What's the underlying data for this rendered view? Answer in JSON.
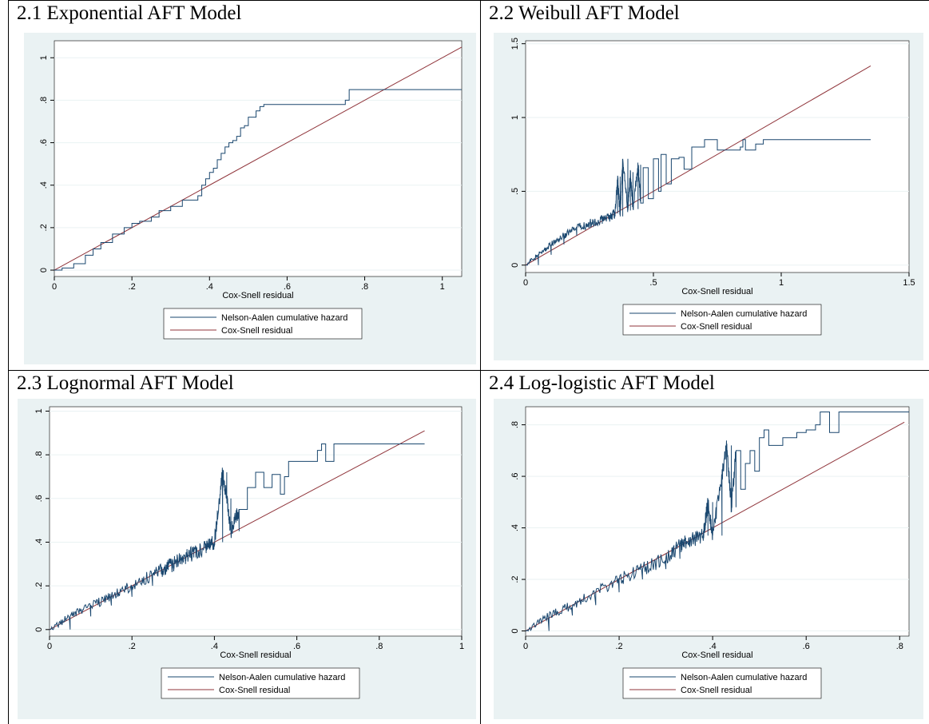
{
  "figure": {
    "background_color": "#eaf2f3",
    "plot_background": "#ffffff",
    "gridline_color": "#eaf2f3",
    "na_line_color": "#1a476f",
    "reference_line_color": "#90353b"
  },
  "panels": [
    {
      "title": "2.1 Exponential AFT Model"
    },
    {
      "title": "2.2 Weibull AFT Model"
    },
    {
      "title": "2.3 Lognormal AFT Model"
    },
    {
      "title": "2.4 Log-logistic AFT Model"
    }
  ],
  "chart_data": [
    {
      "type": "line",
      "title": "",
      "xlabel": "Cox-Snell residual",
      "ylabel": "",
      "xlim": [
        0,
        1.05
      ],
      "ylim": [
        -0.03,
        1.08
      ],
      "x_ticks": [
        0,
        0.2,
        0.4,
        0.6,
        0.8,
        1
      ],
      "x_tick_labels": [
        "0",
        ".2",
        ".4",
        ".6",
        ".8",
        "1"
      ],
      "y_ticks": [
        0,
        0.2,
        0.4,
        0.6,
        0.8,
        1
      ],
      "y_tick_labels": [
        "0",
        ".2",
        ".4",
        ".6",
        ".8",
        "1"
      ],
      "grid": true,
      "legend_position": "bottom",
      "noise": 0,
      "series": [
        {
          "name": "Nelson-Aalen cumulative hazard",
          "x": [
            0,
            0.02,
            0.05,
            0.08,
            0.1,
            0.12,
            0.15,
            0.18,
            0.2,
            0.22,
            0.25,
            0.27,
            0.3,
            0.33,
            0.35,
            0.37,
            0.38,
            0.39,
            0.4,
            0.41,
            0.42,
            0.43,
            0.44,
            0.45,
            0.46,
            0.47,
            0.48,
            0.49,
            0.5,
            0.51,
            0.52,
            0.53,
            0.54,
            0.6,
            0.7,
            0.75,
            0.76,
            0.85,
            1.05
          ],
          "y": [
            0,
            0.01,
            0.03,
            0.07,
            0.1,
            0.13,
            0.17,
            0.2,
            0.22,
            0.23,
            0.25,
            0.28,
            0.3,
            0.33,
            0.33,
            0.35,
            0.4,
            0.43,
            0.46,
            0.48,
            0.52,
            0.55,
            0.58,
            0.6,
            0.61,
            0.63,
            0.67,
            0.68,
            0.72,
            0.72,
            0.75,
            0.77,
            0.78,
            0.78,
            0.78,
            0.8,
            0.85,
            0.85,
            0.85
          ]
        },
        {
          "name": "Cox-Snell residual",
          "x": [
            0,
            1.05
          ],
          "y": [
            0,
            1.05
          ]
        }
      ]
    },
    {
      "type": "line",
      "title": "",
      "xlabel": "Cox-Snell residual",
      "ylabel": "",
      "xlim": [
        0,
        1.5
      ],
      "ylim": [
        -0.05,
        1.52
      ],
      "x_ticks": [
        0,
        0.5,
        1,
        1.5
      ],
      "x_tick_labels": [
        "0",
        ".5",
        "1",
        "1.5"
      ],
      "y_ticks": [
        0,
        0.5,
        1,
        1.5
      ],
      "y_tick_labels": [
        "0",
        ".5",
        "1",
        "1.5"
      ],
      "grid": true,
      "legend_position": "bottom",
      "noise": 0.035,
      "series": [
        {
          "name": "Nelson-Aalen cumulative hazard",
          "x": [
            0,
            0.05,
            0.1,
            0.15,
            0.2,
            0.25,
            0.3,
            0.33,
            0.35,
            0.36,
            0.37,
            0.38,
            0.4,
            0.41,
            0.42,
            0.44,
            0.45,
            0.46,
            0.48,
            0.5,
            0.52,
            0.53,
            0.55,
            0.57,
            0.6,
            0.62,
            0.65,
            0.7,
            0.75,
            0.8,
            0.84,
            0.85,
            0.86,
            0.9,
            0.93,
            1.0,
            1.35
          ],
          "y": [
            0,
            0.07,
            0.14,
            0.2,
            0.25,
            0.28,
            0.31,
            0.33,
            0.35,
            0.6,
            0.33,
            0.72,
            0.37,
            0.63,
            0.38,
            0.68,
            0.42,
            0.66,
            0.45,
            0.72,
            0.5,
            0.75,
            0.55,
            0.72,
            0.73,
            0.65,
            0.8,
            0.85,
            0.78,
            0.78,
            0.8,
            0.85,
            0.78,
            0.82,
            0.85,
            0.85,
            0.85
          ]
        },
        {
          "name": "Cox-Snell residual",
          "x": [
            0,
            1.35
          ],
          "y": [
            0,
            1.35
          ]
        }
      ]
    },
    {
      "type": "line",
      "title": "",
      "xlabel": "Cox-Snell residual",
      "ylabel": "",
      "xlim": [
        0,
        1
      ],
      "ylim": [
        -0.03,
        1.02
      ],
      "x_ticks": [
        0,
        0.2,
        0.4,
        0.6,
        0.8,
        1
      ],
      "x_tick_labels": [
        "0",
        ".2",
        ".4",
        ".6",
        ".8",
        "1"
      ],
      "y_ticks": [
        0,
        0.2,
        0.4,
        0.6,
        0.8,
        1
      ],
      "y_tick_labels": [
        "0",
        ".2",
        ".4",
        ".6",
        ".8",
        "1"
      ],
      "grid": true,
      "legend_position": "bottom",
      "noise": 0.035,
      "series": [
        {
          "name": "Nelson-Aalen cumulative hazard",
          "x": [
            0,
            0.05,
            0.1,
            0.15,
            0.2,
            0.25,
            0.28,
            0.3,
            0.33,
            0.35,
            0.38,
            0.4,
            0.42,
            0.43,
            0.44,
            0.46,
            0.48,
            0.5,
            0.52,
            0.54,
            0.56,
            0.57,
            0.58,
            0.6,
            0.65,
            0.66,
            0.67,
            0.68,
            0.69,
            0.72,
            0.8,
            0.91
          ],
          "y": [
            0,
            0.06,
            0.11,
            0.15,
            0.2,
            0.25,
            0.28,
            0.3,
            0.33,
            0.35,
            0.38,
            0.4,
            0.72,
            0.6,
            0.45,
            0.55,
            0.65,
            0.72,
            0.65,
            0.71,
            0.62,
            0.7,
            0.77,
            0.77,
            0.82,
            0.85,
            0.77,
            0.77,
            0.85,
            0.85,
            0.85,
            0.85
          ]
        },
        {
          "name": "Cox-Snell residual",
          "x": [
            0,
            0.91
          ],
          "y": [
            0,
            0.91
          ]
        }
      ]
    },
    {
      "type": "line",
      "title": "",
      "xlabel": "Cox-Snell residual",
      "ylabel": "",
      "xlim": [
        0,
        0.82
      ],
      "ylim": [
        -0.02,
        0.87
      ],
      "x_ticks": [
        0,
        0.2,
        0.4,
        0.6,
        0.8
      ],
      "x_tick_labels": [
        "0",
        ".2",
        ".4",
        ".6",
        ".8"
      ],
      "y_ticks": [
        0,
        0.2,
        0.4,
        0.6,
        0.8
      ],
      "y_tick_labels": [
        "0",
        ".2",
        ".4",
        ".6",
        ".8"
      ],
      "grid": true,
      "legend_position": "bottom",
      "noise": 0.03,
      "series": [
        {
          "name": "Nelson-Aalen cumulative hazard",
          "x": [
            0,
            0.05,
            0.1,
            0.15,
            0.2,
            0.25,
            0.3,
            0.33,
            0.35,
            0.38,
            0.39,
            0.4,
            0.42,
            0.43,
            0.44,
            0.45,
            0.46,
            0.47,
            0.48,
            0.49,
            0.5,
            0.51,
            0.52,
            0.55,
            0.58,
            0.6,
            0.62,
            0.63,
            0.65,
            0.66,
            0.67,
            0.7,
            0.82
          ],
          "y": [
            0,
            0.06,
            0.1,
            0.15,
            0.2,
            0.24,
            0.28,
            0.33,
            0.35,
            0.37,
            0.5,
            0.37,
            0.6,
            0.72,
            0.48,
            0.7,
            0.55,
            0.65,
            0.7,
            0.62,
            0.75,
            0.78,
            0.72,
            0.75,
            0.77,
            0.78,
            0.8,
            0.85,
            0.77,
            0.77,
            0.85,
            0.85,
            0.85
          ]
        },
        {
          "name": "Cox-Snell residual",
          "x": [
            0,
            0.81
          ],
          "y": [
            0,
            0.81
          ]
        }
      ]
    }
  ]
}
